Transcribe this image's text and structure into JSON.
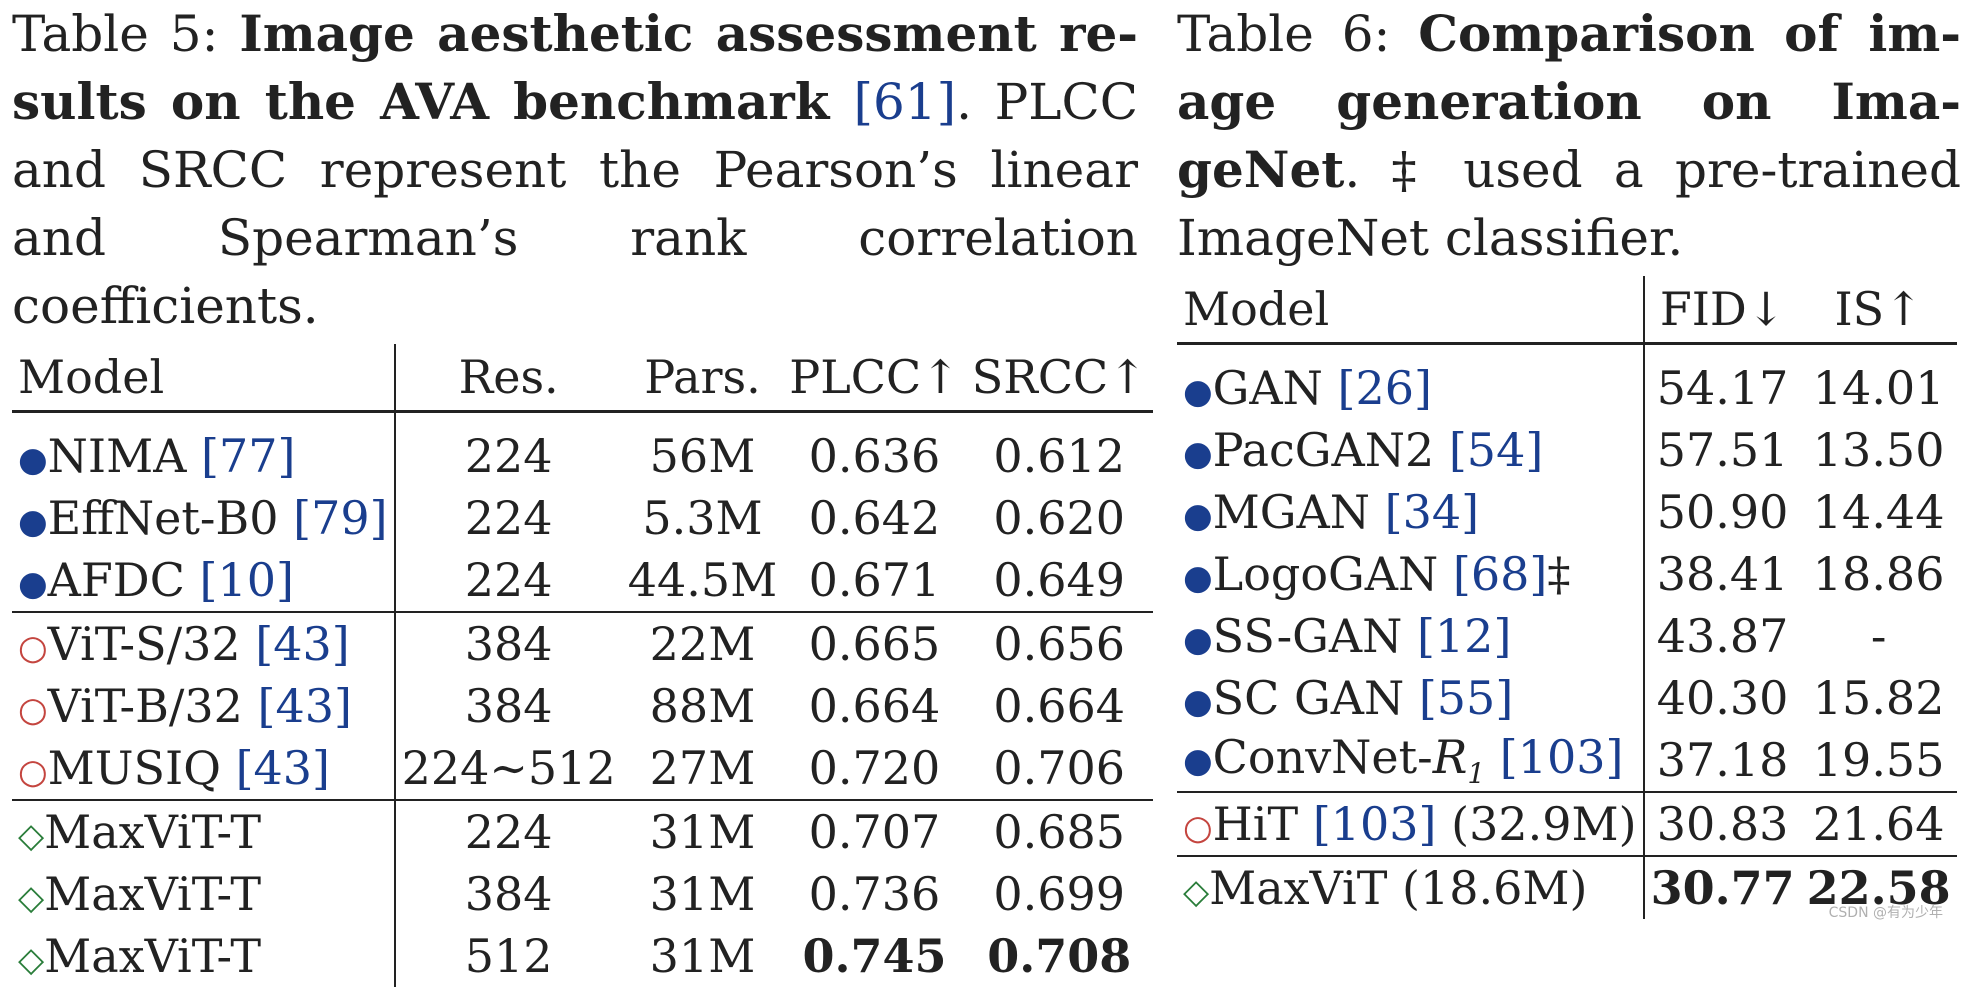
{
  "table5": {
    "caption_prefix": "Table 5: ",
    "caption_bold_1": "Image aesthetic assessment re-",
    "caption_bold_2": "sults on the AVA benchmark ",
    "caption_ref": "[61]",
    "caption_rest": ". PLCC and SRCC represent the Pearson’s linear and Spearman’s rank correlation coefficients.",
    "headers": [
      "Model",
      "Res.",
      "Pars.",
      "PLCC↑",
      "SRCC↑"
    ],
    "rows": [
      {
        "marker": "●",
        "model": "NIMA ",
        "ref": "[77]",
        "res": "224",
        "pars": "56M",
        "plcc": "0.636",
        "srcc": "0.612"
      },
      {
        "marker": "●",
        "model": "EffNet-B0 ",
        "ref": "[79]",
        "res": "224",
        "pars": "5.3M",
        "plcc": "0.642",
        "srcc": "0.620"
      },
      {
        "marker": "●",
        "model": "AFDC ",
        "ref": "[10]",
        "res": "224",
        "pars": "44.5M",
        "plcc": "0.671",
        "srcc": "0.649"
      },
      {
        "marker": "○",
        "model": "ViT-S/32 ",
        "ref": "[43]",
        "res": "384",
        "pars": "22M",
        "plcc": "0.665",
        "srcc": "0.656"
      },
      {
        "marker": "○",
        "model": "ViT-B/32 ",
        "ref": "[43]",
        "res": "384",
        "pars": "88M",
        "plcc": "0.664",
        "srcc": "0.664"
      },
      {
        "marker": "○",
        "model": "MUSIQ ",
        "ref": "[43]",
        "res": "224∼512",
        "pars": "27M",
        "plcc": "0.720",
        "srcc": "0.706"
      },
      {
        "marker": "◇",
        "model": "MaxViT-T",
        "ref": "",
        "res": "224",
        "pars": "31M",
        "plcc": "0.707",
        "srcc": "0.685"
      },
      {
        "marker": "◇",
        "model": "MaxViT-T",
        "ref": "",
        "res": "384",
        "pars": "31M",
        "plcc": "0.736",
        "srcc": "0.699"
      },
      {
        "marker": "◇",
        "model": "MaxViT-T",
        "ref": "",
        "res": "512",
        "pars": "31M",
        "plcc": "0.745",
        "srcc": "0.708"
      }
    ]
  },
  "table6": {
    "caption_prefix": "Table 6: ",
    "caption_bold_1": "Comparison of im-",
    "caption_bold_2": "age generation on Ima-",
    "caption_bold_3": "geNet",
    "caption_rest": ". ‡ used a pre-trained ImageNet classifier.",
    "headers": [
      "Model",
      "FID↓",
      "IS↑"
    ],
    "rows": [
      {
        "marker": "●",
        "model": "GAN ",
        "ref": "[26]",
        "suffix": "",
        "fid": "54.17",
        "is": "14.01"
      },
      {
        "marker": "●",
        "model": "PacGAN2 ",
        "ref": "[54]",
        "suffix": "",
        "fid": "57.51",
        "is": "13.50"
      },
      {
        "marker": "●",
        "model": "MGAN ",
        "ref": "[34]",
        "suffix": "",
        "fid": "50.90",
        "is": "14.44"
      },
      {
        "marker": "●",
        "model": "LogoGAN ",
        "ref": "[68]",
        "suffix": "‡",
        "fid": "38.41",
        "is": "18.86"
      },
      {
        "marker": "●",
        "model": "SS-GAN ",
        "ref": "[12]",
        "suffix": "",
        "fid": "43.87",
        "is": "-"
      },
      {
        "marker": "●",
        "model": "SC GAN ",
        "ref": "[55]",
        "suffix": "",
        "fid": "40.30",
        "is": "15.82"
      },
      {
        "marker": "●",
        "model": "ConvNet-",
        "ref": "[103]",
        "suffix": "",
        "fid": "37.18",
        "is": "19.55"
      },
      {
        "marker": "○",
        "model": "HiT ",
        "ref": "[103]",
        "suffix": " (32.9M)",
        "fid": "30.83",
        "is": "21.64"
      },
      {
        "marker": "◇",
        "model": "MaxViT (18.6M)",
        "ref": "",
        "suffix": "",
        "fid": "30.77",
        "is": "22.58"
      }
    ],
    "convnet_italic": "R",
    "convnet_sub": "1"
  },
  "watermark": "CSDN @有为少年"
}
